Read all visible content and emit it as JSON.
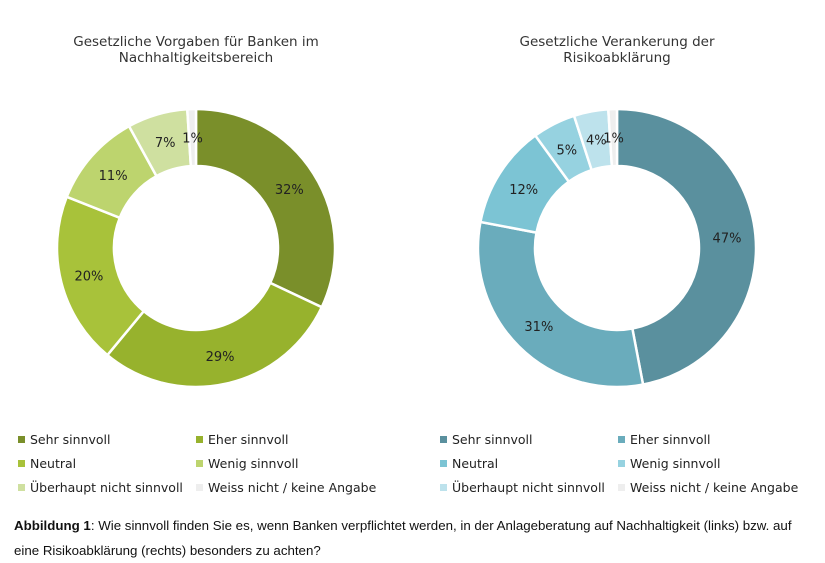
{
  "chart_data": [
    {
      "type": "pie",
      "title": "Gesetzliche Vorgaben für Banken im Nachhaltigkeitsbereich",
      "title_lines": [
        "Gesetzliche Vorgaben für Banken im",
        "Nachhaltigkeitsbereich"
      ],
      "categories": [
        "Sehr sinnvoll",
        "Eher sinnvoll",
        "Neutral",
        "Wenig sinnvoll",
        "Überhaupt nicht sinnvoll",
        "Weiss nicht / keine Angabe"
      ],
      "values": [
        32,
        29,
        20,
        11,
        7,
        1
      ],
      "labels": [
        "32%",
        "29%",
        "20%",
        "11%",
        "7%",
        "1%"
      ],
      "colors": [
        "#7a8f2a",
        "#97b22d",
        "#a8c23a",
        "#bdd46e",
        "#cfe0a0",
        "#eeeeee"
      ],
      "legend": "bottom"
    },
    {
      "type": "pie",
      "title": "Gesetzliche Verankerung der Risikoabklärung",
      "title_lines": [
        "Gesetzliche Verankerung der",
        "Risikoabklärung"
      ],
      "categories": [
        "Sehr sinnvoll",
        "Eher sinnvoll",
        "Neutral",
        "Wenig sinnvoll",
        "Überhaupt nicht sinnvoll",
        "Weiss nicht / keine Angabe"
      ],
      "values": [
        47,
        31,
        12,
        5,
        4,
        1
      ],
      "labels": [
        "47%",
        "31%",
        "12%",
        "5%",
        "4%",
        "1%"
      ],
      "colors": [
        "#5a909e",
        "#6aacbc",
        "#7cc4d4",
        "#96d2e0",
        "#bde2ec",
        "#eeeeee"
      ],
      "legend": "bottom"
    }
  ],
  "caption": {
    "bold": "Abbildung 1",
    "text": ": Wie sinnvoll finden Sie es, wenn Banken verpflichtet werden, in der Anlageberatung auf Nachhaltigkeit (links) bzw. auf eine Risikoabklärung (rechts) besonders zu achten?"
  }
}
